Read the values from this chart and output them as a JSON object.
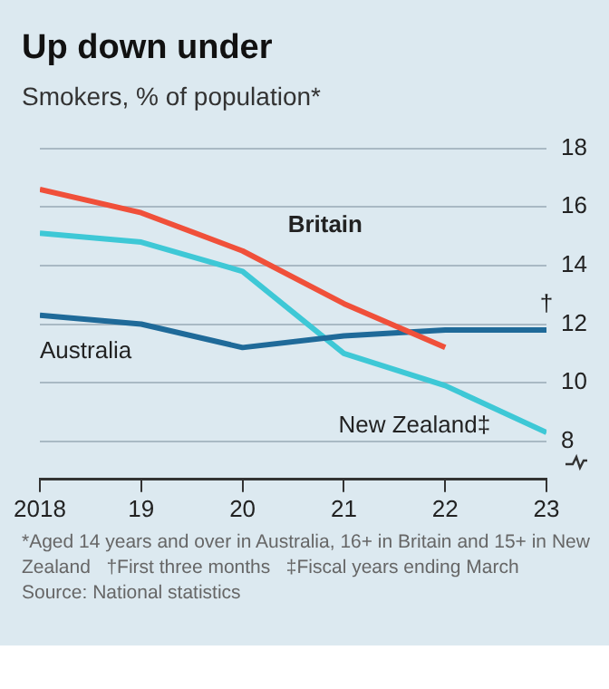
{
  "chart_data": {
    "type": "line",
    "title": "Up down under",
    "subtitle": "Smokers, % of population*",
    "x": [
      2018,
      2019,
      2020,
      2021,
      2022,
      2023
    ],
    "series": [
      {
        "name": "Britain",
        "color": "#f0503a",
        "values": [
          16.6,
          15.8,
          14.5,
          12.7,
          11.2,
          null
        ]
      },
      {
        "name": "Australia",
        "color": "#1f6a99",
        "values": [
          12.3,
          12.0,
          11.2,
          11.6,
          11.8,
          11.8
        ]
      },
      {
        "name": "New Zealand‡",
        "color": "#3ec8d6",
        "values": [
          15.1,
          14.8,
          13.8,
          11.0,
          9.9,
          8.3
        ]
      }
    ],
    "xlim": [
      2018,
      2023
    ],
    "xticks": [
      2018,
      {
        "value": 2019,
        "label": "19"
      },
      {
        "value": 2020,
        "label": "20"
      },
      {
        "value": 2021,
        "label": "21"
      },
      {
        "value": 2022,
        "label": "22"
      },
      {
        "value": 2023,
        "label": "23"
      }
    ],
    "ylim": [
      6.7,
      18
    ],
    "yticks": [
      8,
      10,
      12,
      14,
      16,
      18
    ],
    "grid": "y",
    "legend": false,
    "marker": "none",
    "line_style": "solid",
    "annotations": [
      {
        "text": "†",
        "x": 2023,
        "y": 11.8
      },
      "*Aged 14 years and over in Australia, 16+ in Britain and 15+ in New Zealand",
      "†First three months",
      "‡Fiscal years ending March",
      "Source: National statistics"
    ]
  }
}
